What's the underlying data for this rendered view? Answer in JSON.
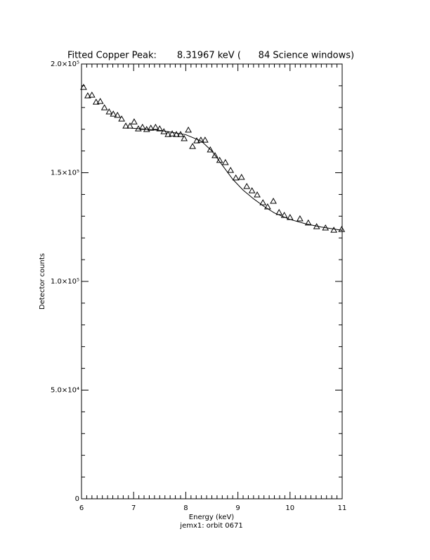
{
  "chart_data": {
    "type": "scatter",
    "title": "Fitted Copper Peak:       8.31967 keV (      84 Science windows)",
    "x_label": "Energy (keV)",
    "y_label": "Detector counts",
    "footer": "jemx1: orbit 0671",
    "xlim": [
      6,
      11
    ],
    "ylim": [
      0,
      200000
    ],
    "xticks": [
      6,
      7,
      8,
      9,
      10,
      11
    ],
    "xminorticks": [
      6.1,
      6.2,
      6.3,
      6.4,
      6.5,
      6.6,
      6.7,
      6.8,
      6.9,
      7.1,
      7.2,
      7.3,
      7.4,
      7.5,
      7.6,
      7.7,
      7.8,
      7.9,
      8.1,
      8.2,
      8.3,
      8.4,
      8.5,
      8.6,
      8.7,
      8.8,
      8.9,
      9.1,
      9.2,
      9.3,
      9.4,
      9.5,
      9.6,
      9.7,
      9.8,
      9.9,
      10.1,
      10.2,
      10.3,
      10.4,
      10.5,
      10.6,
      10.7,
      10.8,
      10.9
    ],
    "yticks": [
      {
        "value": 0,
        "label": "0"
      },
      {
        "value": 50000,
        "label": "5.0×10⁴"
      },
      {
        "value": 100000,
        "label": "1.0×10⁵"
      },
      {
        "value": 150000,
        "label": "1.5×10⁵"
      },
      {
        "value": 200000,
        "label": "2.0×10⁵"
      }
    ],
    "yminorticks": [
      10000,
      20000,
      30000,
      40000,
      60000,
      70000,
      80000,
      90000,
      110000,
      120000,
      130000,
      140000,
      160000,
      170000,
      180000,
      190000
    ],
    "series": [
      {
        "name": "Data",
        "color": "#000000",
        "marker": "triangle",
        "x": [
          6.04,
          6.12,
          6.2,
          6.28,
          6.36,
          6.44,
          6.53,
          6.61,
          6.69,
          6.77,
          6.85,
          6.93,
          7.01,
          7.09,
          7.17,
          7.25,
          7.33,
          7.42,
          7.5,
          7.58,
          7.66,
          7.74,
          7.82,
          7.9,
          7.97,
          8.05,
          8.13,
          8.21,
          8.29,
          8.37,
          8.47,
          8.56,
          8.65,
          8.76,
          8.86,
          8.96,
          9.07,
          9.17,
          9.27,
          9.37,
          9.48,
          9.57,
          9.68,
          9.79,
          9.89,
          10.0,
          10.19,
          10.35,
          10.51,
          10.68,
          10.84,
          10.99
        ],
        "values": [
          189300,
          185400,
          185700,
          182500,
          182800,
          179900,
          178000,
          177000,
          176400,
          174700,
          171500,
          171500,
          173400,
          170200,
          170900,
          169900,
          170500,
          170900,
          170200,
          168900,
          167600,
          167900,
          167600,
          167600,
          165700,
          169600,
          162100,
          164700,
          165000,
          165000,
          160500,
          157900,
          155700,
          154700,
          151100,
          147600,
          147900,
          143700,
          141700,
          139800,
          136200,
          134300,
          136900,
          131700,
          130400,
          129400,
          128800,
          126900,
          125200,
          124600,
          123600,
          123900
        ]
      },
      {
        "name": "Fit",
        "color": "#000000",
        "marker": "line",
        "x": [
          6.95,
          7.5,
          8.0,
          8.3,
          8.5,
          8.7,
          8.9,
          9.1,
          9.3,
          9.5,
          9.7,
          10.0,
          10.3,
          10.6,
          11.0
        ],
        "values": [
          170500,
          169500,
          167500,
          164500,
          160000,
          153500,
          147000,
          142000,
          138000,
          134500,
          131500,
          128500,
          126500,
          125000,
          123500
        ]
      }
    ]
  }
}
